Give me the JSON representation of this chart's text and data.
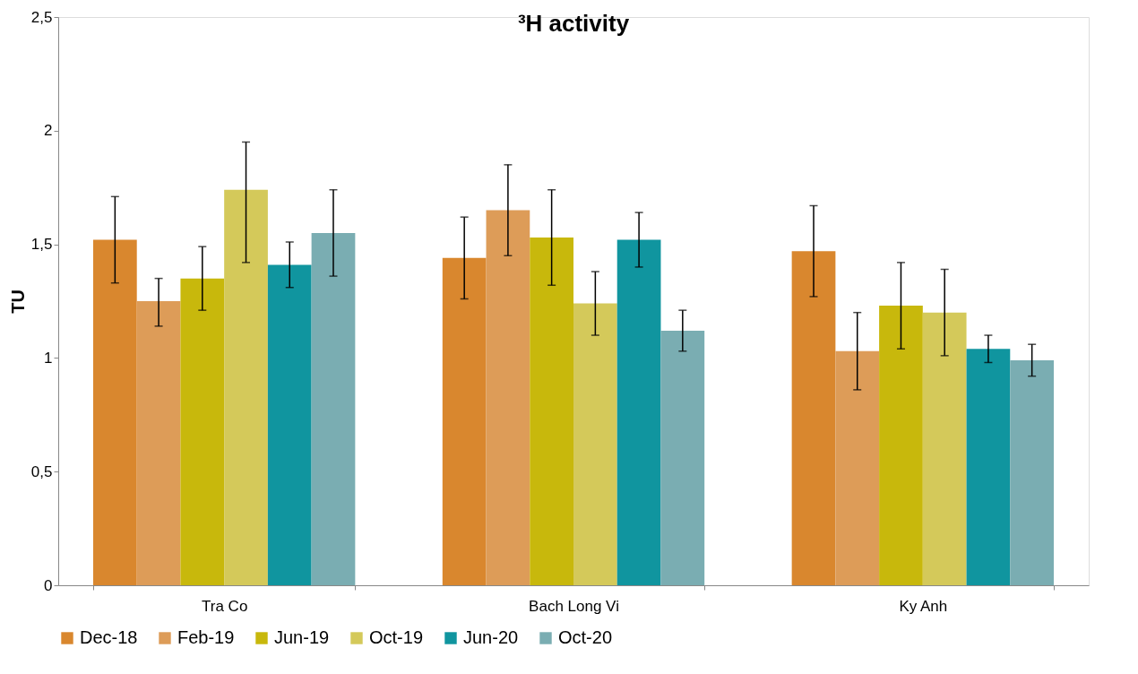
{
  "chart_data": {
    "type": "bar",
    "title": "³H activity",
    "ylabel": "TU",
    "categories": [
      "Tra Co",
      "Bach Long Vi",
      "Ky Anh"
    ],
    "series": [
      {
        "name": "Dec-18",
        "color": "#d9872e",
        "values": [
          1.52,
          1.44,
          1.47
        ],
        "errors": [
          [
            1.33,
            1.71
          ],
          [
            1.26,
            1.62
          ],
          [
            1.27,
            1.67
          ]
        ]
      },
      {
        "name": "Feb-19",
        "color": "#dd9c58",
        "values": [
          1.25,
          1.65,
          1.03
        ],
        "errors": [
          [
            1.14,
            1.35
          ],
          [
            1.45,
            1.85
          ],
          [
            0.86,
            1.2
          ]
        ]
      },
      {
        "name": "Jun-19",
        "color": "#c8b80c",
        "values": [
          1.35,
          1.53,
          1.23
        ],
        "errors": [
          [
            1.21,
            1.49
          ],
          [
            1.32,
            1.74
          ],
          [
            1.04,
            1.42
          ]
        ]
      },
      {
        "name": "Oct-19",
        "color": "#d4c95a",
        "values": [
          1.74,
          1.24,
          1.2
        ],
        "errors": [
          [
            1.42,
            1.95
          ],
          [
            1.1,
            1.38
          ],
          [
            1.01,
            1.39
          ]
        ]
      },
      {
        "name": "Jun-20",
        "color": "#10959f",
        "values": [
          1.41,
          1.52,
          1.04
        ],
        "errors": [
          [
            1.31,
            1.51
          ],
          [
            1.4,
            1.64
          ],
          [
            0.98,
            1.1
          ]
        ]
      },
      {
        "name": "Oct-20",
        "color": "#7aadb2",
        "values": [
          1.55,
          1.12,
          0.99
        ],
        "errors": [
          [
            1.36,
            1.74
          ],
          [
            1.03,
            1.21
          ],
          [
            0.92,
            1.06
          ]
        ]
      }
    ],
    "ylim": [
      0,
      2.5
    ],
    "yticks": [
      0,
      {
        "value": 0.5,
        "label": "0,5"
      },
      1,
      {
        "value": 1.5,
        "label": "1,5"
      },
      2,
      {
        "value": 2.5,
        "label": "2,5"
      }
    ],
    "grid": false,
    "legend": "bottom"
  }
}
